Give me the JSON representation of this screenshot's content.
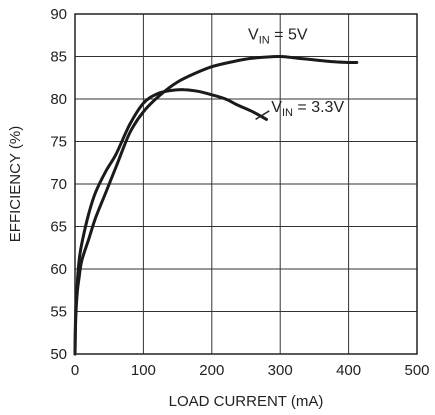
{
  "chart_data": {
    "type": "line",
    "title": "",
    "xlabel": "LOAD CURRENT (mA)",
    "ylabel": "EFFICIENCY (%)",
    "xlim": [
      0,
      500
    ],
    "ylim": [
      50,
      90
    ],
    "xticks": [
      "0",
      "100",
      "200",
      "300",
      "400",
      "500"
    ],
    "yticks": [
      "50",
      "55",
      "60",
      "65",
      "70",
      "75",
      "80",
      "85",
      "90"
    ],
    "grid": true,
    "legend": "none",
    "series": [
      {
        "name": "VIN = 5V",
        "label_main": "V",
        "label_sub": "IN",
        "label_rest": " = 5V",
        "x": [
          0,
          1,
          3,
          6,
          10,
          20,
          30,
          45,
          60,
          80,
          100,
          125,
          150,
          175,
          200,
          225,
          250,
          275,
          300,
          325,
          350,
          375,
          400,
          412
        ],
        "y": [
          50,
          54,
          57,
          59,
          61,
          63.5,
          66,
          69,
          72,
          76,
          78.5,
          80.5,
          82,
          83,
          83.8,
          84.3,
          84.7,
          84.9,
          85,
          84.8,
          84.6,
          84.4,
          84.3,
          84.3
        ]
      },
      {
        "name": "VIN = 3.3V",
        "label_main": "V",
        "label_sub": "IN",
        "label_rest": " = 3.3V",
        "x": [
          0,
          1,
          3,
          6,
          10,
          20,
          30,
          45,
          60,
          80,
          100,
          120,
          140,
          160,
          180,
          200,
          220,
          240,
          260,
          280
        ],
        "y": [
          50,
          55,
          58,
          61,
          63,
          66.5,
          69,
          71.5,
          73.5,
          77,
          79.5,
          80.6,
          81,
          81.1,
          80.9,
          80.5,
          80,
          79.2,
          78.5,
          77.6
        ]
      }
    ]
  }
}
